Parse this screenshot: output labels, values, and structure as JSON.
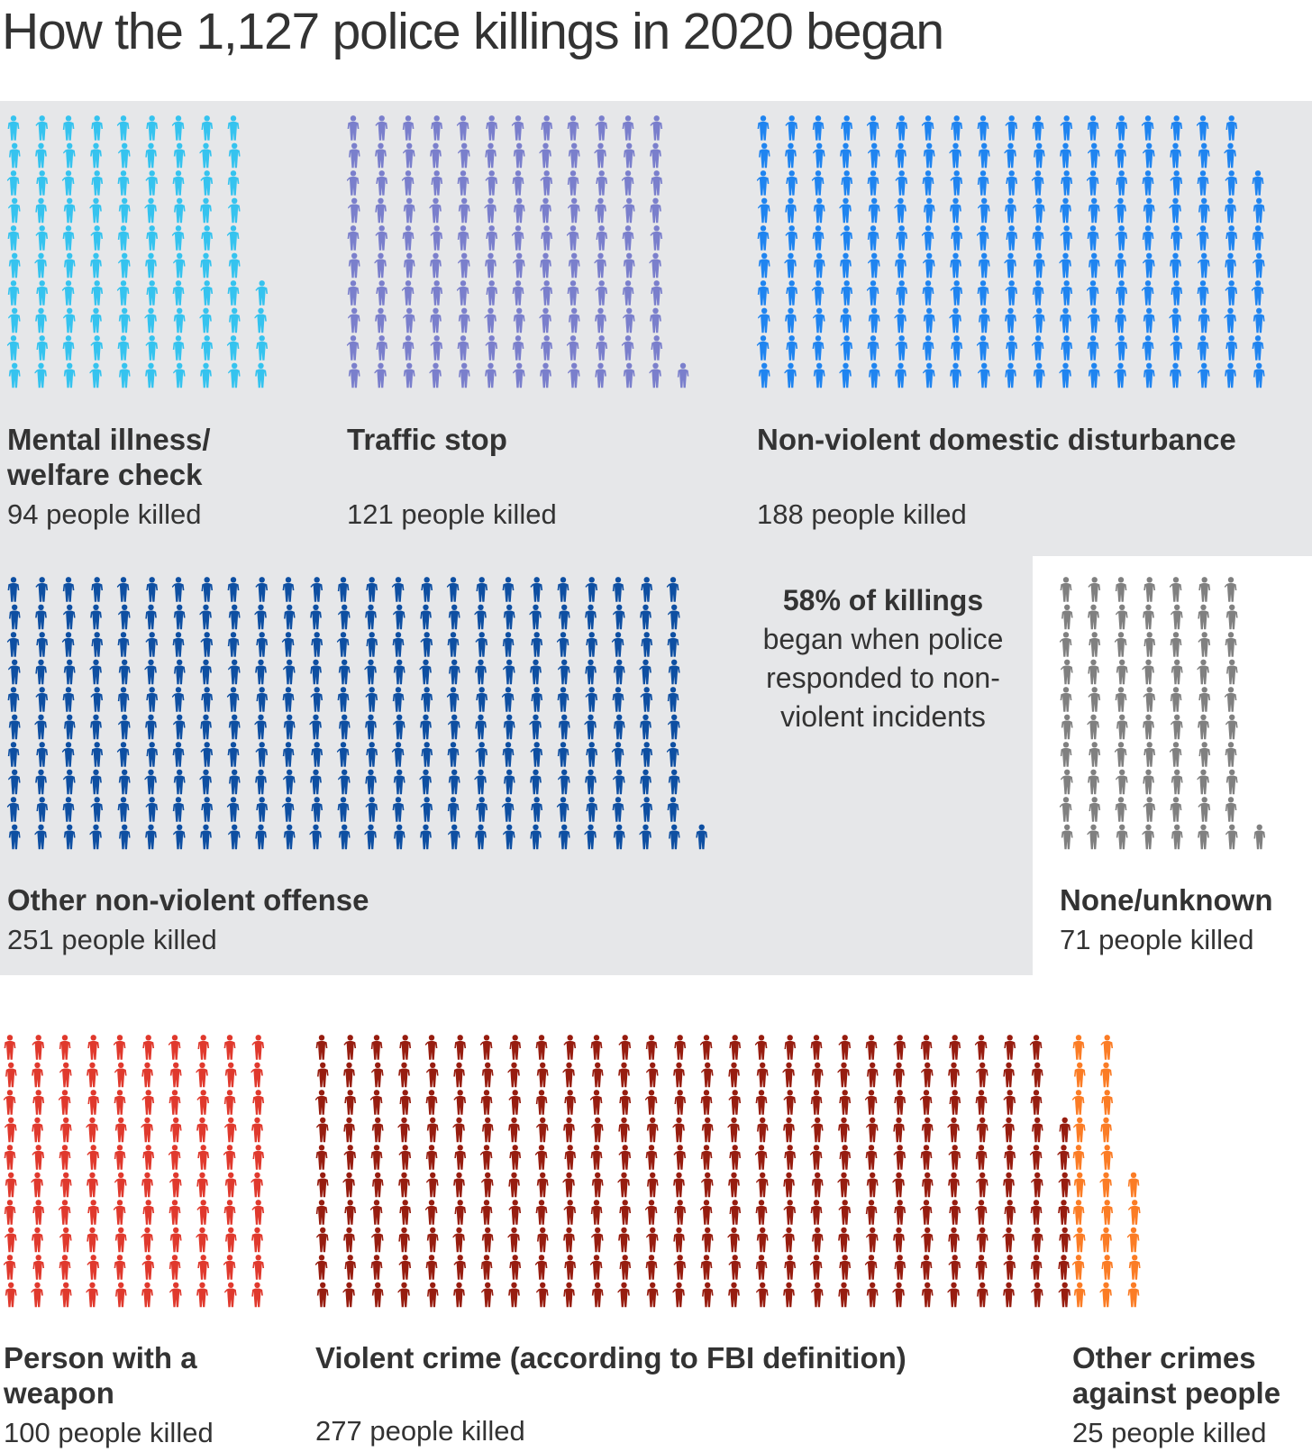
{
  "title": "How the 1,127 police killings in 2020 began",
  "callout": {
    "highlight": "58% of killings",
    "text": "began when police responded to non-violent incidents"
  },
  "chart_data": {
    "type": "pictogram",
    "title": "How the 1,127 police killings in 2020 began",
    "unit": "people killed",
    "total": 1127,
    "non_violent_share_percent": 58,
    "categories": [
      {
        "key": "mental",
        "name": "Mental illness/ welfare check",
        "value": 94,
        "count_label": "94 people killed",
        "color": "#35c3ef",
        "group": "non-violent"
      },
      {
        "key": "traffic",
        "name": "Traffic stop",
        "value": 121,
        "count_label": "121 people killed",
        "color": "#7a7fcc",
        "group": "non-violent"
      },
      {
        "key": "domestic",
        "name": "Non-violent domestic disturbance",
        "value": 188,
        "count_label": "188 people killed",
        "color": "#1f84f0",
        "group": "non-violent"
      },
      {
        "key": "offense",
        "name": "Other non-violent offense",
        "value": 251,
        "count_label": "251 people killed",
        "color": "#0e4fa2",
        "group": "non-violent"
      },
      {
        "key": "unknown",
        "name": "None/unknown",
        "value": 71,
        "count_label": "71 people killed",
        "color": "#808080",
        "group": "unknown"
      },
      {
        "key": "weapon",
        "name": "Person with a weapon",
        "value": 100,
        "count_label": "100 people killed",
        "color": "#e0392d",
        "group": "violent"
      },
      {
        "key": "violent",
        "name": "Violent crime (according to FBI definition)",
        "value": 277,
        "count_label": "277 people killed",
        "color": "#971d10",
        "group": "violent"
      },
      {
        "key": "othercrimes",
        "name": "Other crimes against people",
        "value": 25,
        "count_label": "25 people killed",
        "color": "#fb7c25",
        "group": "violent"
      }
    ]
  }
}
